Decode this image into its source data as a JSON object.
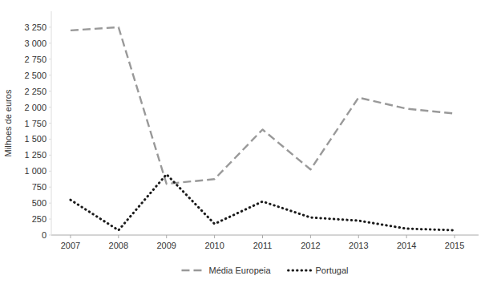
{
  "chart_data": {
    "type": "line",
    "x": [
      2007,
      2008,
      2009,
      2010,
      2011,
      2012,
      2013,
      2014,
      2015
    ],
    "xlim": [
      2006.6,
      2015.5
    ],
    "xticks": [
      2007,
      2008,
      2009,
      2010,
      2011,
      2012,
      2013,
      2014,
      2015
    ],
    "ylim": [
      0,
      3500
    ],
    "yticks": [
      0,
      250,
      500,
      750,
      {
        "value": 1000,
        "label": "1 000"
      },
      {
        "value": 1250,
        "label": "1 250"
      },
      {
        "value": 1500,
        "label": "1 500"
      },
      {
        "value": 1750,
        "label": "1 750"
      },
      {
        "value": 2000,
        "label": "2 000"
      },
      {
        "value": 2250,
        "label": "2 250"
      },
      {
        "value": 2500,
        "label": "2 500"
      },
      {
        "value": 2750,
        "label": "2 750"
      },
      {
        "value": 3000,
        "label": "3 000"
      },
      {
        "value": 3250,
        "label": "3 250"
      }
    ],
    "ylabel": "Milhoes de euros",
    "grid": false,
    "legend": "bottom",
    "series": [
      {
        "name": "Média Europeia",
        "color": "#999999",
        "line_style": "dashed",
        "values": [
          3200,
          3250,
          800,
          875,
          1650,
          1025,
          2150,
          1975,
          1900
        ]
      },
      {
        "name": "Portugal",
        "color": "#1a1a1a",
        "line_style": "dotted",
        "values": [
          550,
          75,
          950,
          175,
          525,
          275,
          225,
          100,
          75
        ]
      }
    ]
  }
}
